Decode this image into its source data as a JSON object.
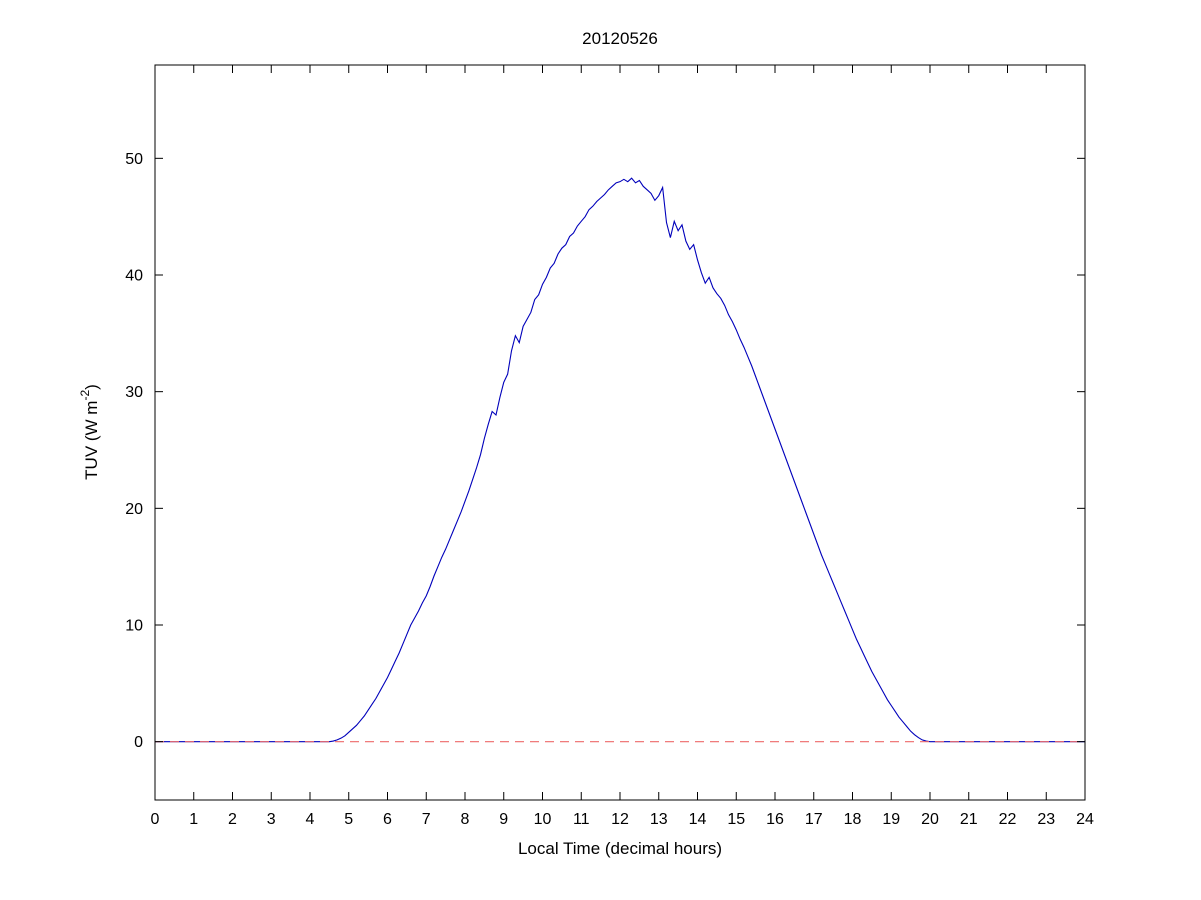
{
  "figure": {
    "title": "20120526",
    "xlabel": "Local Time (decimal hours)",
    "ylabel_pre": "TUV (W m",
    "ylabel_sup": "-2",
    "ylabel_post": ")"
  },
  "colors": {
    "tuv_line": "#0000bb",
    "zero_line": "#ee6a6a",
    "axes": "#000000",
    "background": "#ffffff"
  },
  "chart_data": {
    "type": "line",
    "title": "20120526",
    "xlabel": "Local Time (decimal hours)",
    "ylabel": "TUV (W m^-2)",
    "xlim": [
      0,
      24
    ],
    "ylim": [
      -5,
      58
    ],
    "x_ticks": [
      0,
      1,
      2,
      3,
      4,
      5,
      6,
      7,
      8,
      9,
      10,
      11,
      12,
      13,
      14,
      15,
      16,
      17,
      18,
      19,
      20,
      21,
      22,
      23,
      24
    ],
    "y_ticks": [
      0,
      10,
      20,
      30,
      40,
      50
    ],
    "grid": false,
    "legend": null,
    "series": [
      {
        "name": "TUV irradiance",
        "color": "#0000bb",
        "style": "solid",
        "x_start": 0,
        "x_step": 0.1,
        "values": [
          0,
          0,
          0,
          0,
          0,
          0,
          0,
          0,
          0,
          0,
          0,
          0,
          0,
          0,
          0,
          0,
          0,
          0,
          0,
          0,
          0,
          0,
          0,
          0,
          0,
          0,
          0,
          0,
          0,
          0,
          0,
          0,
          0,
          0,
          0,
          0,
          0,
          0,
          0,
          0,
          0,
          0,
          0,
          0,
          0,
          0,
          0.05,
          0.15,
          0.3,
          0.5,
          0.8,
          1.1,
          1.4,
          1.8,
          2.2,
          2.7,
          3.2,
          3.7,
          4.3,
          4.9,
          5.5,
          6.2,
          6.9,
          7.6,
          8.4,
          9.2,
          10.0,
          10.6,
          11.2,
          11.9,
          12.5,
          13.3,
          14.2,
          15.0,
          15.8,
          16.5,
          17.3,
          18.1,
          18.9,
          19.7,
          20.6,
          21.5,
          22.5,
          23.5,
          24.6,
          26.0,
          27.2,
          28.3,
          28.0,
          29.5,
          30.8,
          31.5,
          33.5,
          34.8,
          34.2,
          35.6,
          36.2,
          36.8,
          37.9,
          38.3,
          39.2,
          39.8,
          40.6,
          41.0,
          41.8,
          42.3,
          42.6,
          43.3,
          43.6,
          44.2,
          44.6,
          45.0,
          45.6,
          45.9,
          46.3,
          46.6,
          46.9,
          47.3,
          47.6,
          47.9,
          48.0,
          48.2,
          48.0,
          48.3,
          47.9,
          48.1,
          47.6,
          47.3,
          47.0,
          46.4,
          46.8,
          47.5,
          44.5,
          43.2,
          44.6,
          43.8,
          44.3,
          42.9,
          42.2,
          42.6,
          41.3,
          40.2,
          39.3,
          39.8,
          38.9,
          38.4,
          38.0,
          37.4,
          36.6,
          36.0,
          35.3,
          34.5,
          33.8,
          33.0,
          32.2,
          31.3,
          30.4,
          29.5,
          28.6,
          27.7,
          26.8,
          25.9,
          25.0,
          24.1,
          23.2,
          22.3,
          21.4,
          20.5,
          19.6,
          18.7,
          17.8,
          16.9,
          16.0,
          15.2,
          14.4,
          13.6,
          12.8,
          12.0,
          11.2,
          10.4,
          9.6,
          8.8,
          8.1,
          7.4,
          6.7,
          6.0,
          5.4,
          4.8,
          4.2,
          3.6,
          3.1,
          2.6,
          2.1,
          1.7,
          1.3,
          0.9,
          0.6,
          0.35,
          0.15,
          0.05,
          0,
          0,
          0,
          0,
          0,
          0,
          0,
          0,
          0,
          0,
          0,
          0,
          0,
          0,
          0,
          0,
          0,
          0,
          0,
          0,
          0,
          0,
          0,
          0,
          0,
          0,
          0,
          0,
          0,
          0,
          0,
          0,
          0,
          0,
          0,
          0,
          0,
          0,
          0,
          0,
          0
        ]
      },
      {
        "name": "zero baseline",
        "color": "#ee6a6a",
        "style": "dashed",
        "x": [
          0,
          24
        ],
        "y": [
          0,
          0
        ]
      }
    ]
  }
}
